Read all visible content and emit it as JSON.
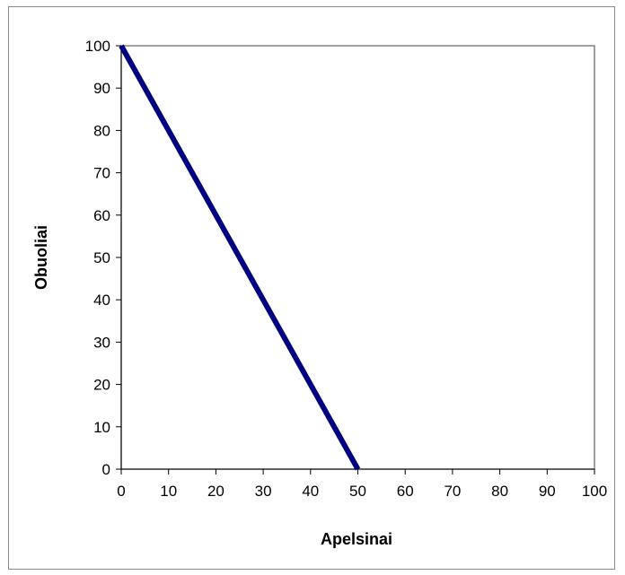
{
  "chart_data": {
    "type": "line",
    "title": "",
    "xlabel": "Apelsinai",
    "ylabel": "Obuoliai",
    "xlim": [
      0,
      100
    ],
    "ylim": [
      0,
      100
    ],
    "x_ticks": [
      0,
      10,
      20,
      30,
      40,
      50,
      60,
      70,
      80,
      90,
      100
    ],
    "y_ticks": [
      0,
      10,
      20,
      30,
      40,
      50,
      60,
      70,
      80,
      90,
      100
    ],
    "grid": false,
    "legend": "none",
    "series": [
      {
        "x": [
          0,
          50
        ],
        "y": [
          100,
          0
        ],
        "color": "#000080"
      }
    ],
    "colors": {
      "line": "#000080",
      "plot_border": "#808080"
    }
  }
}
